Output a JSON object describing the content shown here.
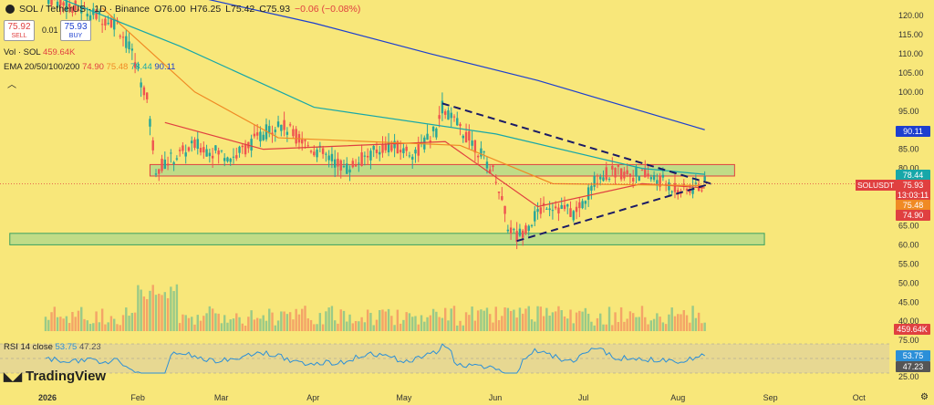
{
  "header": {
    "symbol_title": "SOL / TetherUS · 1D · Binance",
    "open": "O76.00",
    "high": "H76.25",
    "low": "L75.42",
    "close": "C75.93",
    "change": "−0.06 (−0.08%)"
  },
  "trade": {
    "sell_price": "75.92",
    "sell_label": "SELL",
    "buy_price": "75.93",
    "buy_label": "BUY",
    "spread": "0.01"
  },
  "volume_legend": {
    "label": "Vol · SOL",
    "value": "459.64K"
  },
  "ema_legend": {
    "label": "EMA 20/50/100/200",
    "v20": "74.90",
    "v50": "75.48",
    "v100": "78.44",
    "v200": "90.11"
  },
  "rsi_legend": {
    "label": "RSI 14 close",
    "rsi": "53.75",
    "ma": "47.23"
  },
  "brand": "TradingView",
  "symbol_tag": "SOLUSDT",
  "price_badges": [
    {
      "value": "90.11",
      "color": "#1d3fcf"
    },
    {
      "value": "78.44",
      "color": "#17a7a8"
    },
    {
      "value": "75.93",
      "color": "#e04040"
    },
    {
      "value": "13:03:11",
      "color": "#e04040"
    },
    {
      "value": "75.48",
      "color": "#f08a24"
    },
    {
      "value": "74.90",
      "color": "#e04040"
    },
    {
      "value": "459.64K",
      "color": "#e04040"
    },
    {
      "value": "53.75",
      "color": "#2b8fd8"
    },
    {
      "value": "47.23",
      "color": "#555555"
    }
  ],
  "chart_data": {
    "type": "candlestick",
    "x_tick_labels": [
      "2026",
      "Feb",
      "Mar",
      "Apr",
      "May",
      "Jun",
      "Jul",
      "Aug",
      "Sep",
      "Oct"
    ],
    "price_axis_ticks": [
      120,
      115,
      110,
      105,
      100,
      95,
      85,
      80,
      65,
      60,
      55,
      50,
      45,
      40
    ],
    "rsi_axis_ticks": [
      75,
      25
    ],
    "price_series": [
      {
        "t": "2026-01-01",
        "close": 125
      },
      {
        "t": "2026-01-25",
        "close": 118
      },
      {
        "t": "2026-01-31",
        "close": 108
      },
      {
        "t": "2026-02-04",
        "close": 98
      },
      {
        "t": "2026-02-07",
        "close": 80
      },
      {
        "t": "2026-02-20",
        "close": 86
      },
      {
        "t": "2026-03-05",
        "close": 83
      },
      {
        "t": "2026-03-20",
        "close": 92
      },
      {
        "t": "2026-04-01",
        "close": 85
      },
      {
        "t": "2026-04-12",
        "close": 80
      },
      {
        "t": "2026-04-25",
        "close": 86
      },
      {
        "t": "2026-05-05",
        "close": 84
      },
      {
        "t": "2026-05-12",
        "close": 90
      },
      {
        "t": "2026-05-14",
        "close": 96
      },
      {
        "t": "2026-05-25",
        "close": 86
      },
      {
        "t": "2026-06-01",
        "close": 78
      },
      {
        "t": "2026-06-05",
        "close": 65
      },
      {
        "t": "2026-06-08",
        "close": 62
      },
      {
        "t": "2026-06-18",
        "close": 71
      },
      {
        "t": "2026-06-28",
        "close": 68
      },
      {
        "t": "2026-07-05",
        "close": 78
      },
      {
        "t": "2026-07-12",
        "close": 79
      },
      {
        "t": "2026-07-22",
        "close": 78
      },
      {
        "t": "2026-08-03",
        "close": 74
      },
      {
        "t": "2026-08-10",
        "close": 75.93
      }
    ],
    "ema": [
      {
        "name": "EMA 20",
        "color": "#e04040",
        "points": [
          [
            "2026-02-10",
            92
          ],
          [
            "2026-03-15",
            85
          ],
          [
            "2026-05-15",
            87
          ],
          [
            "2026-06-15",
            70
          ],
          [
            "2026-07-20",
            76
          ],
          [
            "2026-08-10",
            74.9
          ]
        ]
      },
      {
        "name": "EMA 50",
        "color": "#f08a24",
        "points": [
          [
            "2026-01-20",
            122
          ],
          [
            "2026-02-20",
            100
          ],
          [
            "2026-03-20",
            88
          ],
          [
            "2026-05-20",
            86
          ],
          [
            "2026-06-20",
            76
          ],
          [
            "2026-08-10",
            75.48
          ]
        ]
      },
      {
        "name": "EMA 100",
        "color": "#17a7a8",
        "points": [
          [
            "2026-01-01",
            126
          ],
          [
            "2026-02-15",
            112
          ],
          [
            "2026-04-01",
            96
          ],
          [
            "2026-06-01",
            89
          ],
          [
            "2026-07-20",
            80
          ],
          [
            "2026-08-10",
            78.44
          ]
        ]
      },
      {
        "name": "EMA 200",
        "color": "#1d3fcf",
        "points": [
          [
            "2026-02-20",
            125
          ],
          [
            "2026-04-01",
            118
          ],
          [
            "2026-05-10",
            110
          ],
          [
            "2026-06-15",
            103
          ],
          [
            "2026-08-10",
            90.11
          ]
        ]
      }
    ],
    "zones": [
      {
        "from": 78,
        "to": 81,
        "start": "2026-02-05",
        "end": "2026-08-20",
        "border": "#e04040"
      },
      {
        "from": 60,
        "to": 63,
        "start": "2025-12-20",
        "end": "2026-08-30",
        "border": "#3aa060"
      }
    ],
    "trendlines": [
      {
        "from": [
          "2026-05-14",
          97
        ],
        "to": [
          "2026-08-12",
          76
        ]
      },
      {
        "from": [
          "2026-06-08",
          61
        ],
        "to": [
          "2026-08-12",
          76
        ]
      }
    ],
    "volume_last": "459.64K",
    "rsi_last": 53.75,
    "rsi_ma_last": 47.23
  }
}
